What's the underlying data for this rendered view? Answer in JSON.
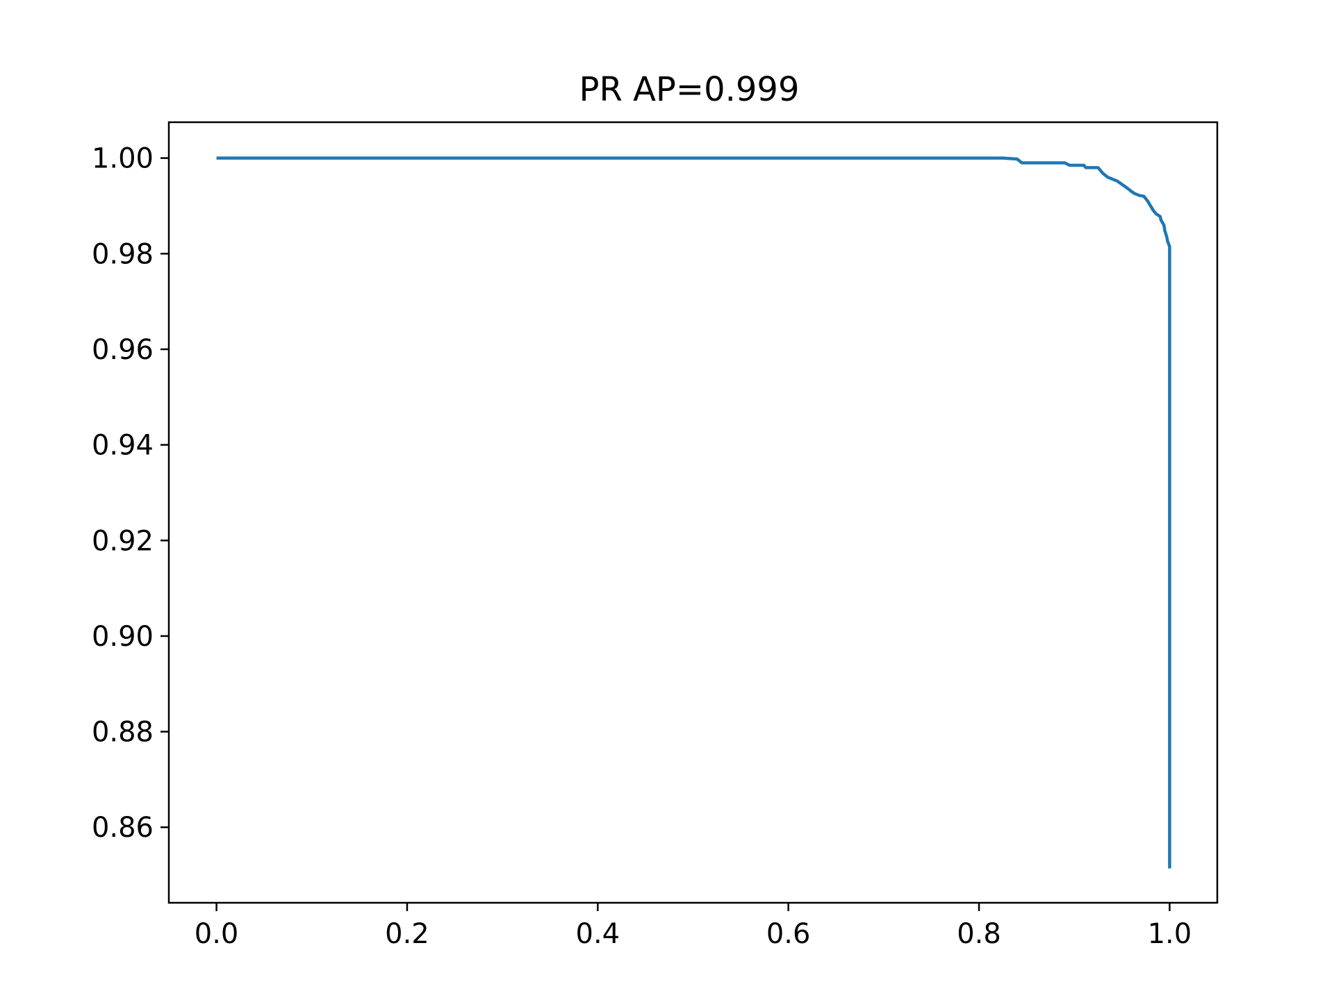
{
  "chart_data": {
    "type": "line",
    "title": "PR AP=0.999",
    "xlabel": "",
    "ylabel": "",
    "xlim": [
      -0.05,
      1.05
    ],
    "ylim": [
      0.8442,
      1.0075
    ],
    "xticks": [
      0.0,
      0.2,
      0.4,
      0.6,
      0.8,
      1.0
    ],
    "xtick_labels": [
      "0.0",
      "0.2",
      "0.4",
      "0.6",
      "0.8",
      "1.0"
    ],
    "yticks": [
      0.86,
      0.88,
      0.9,
      0.92,
      0.94,
      0.96,
      0.98,
      1.0
    ],
    "ytick_labels": [
      "0.86",
      "0.88",
      "0.90",
      "0.92",
      "0.94",
      "0.96",
      "0.98",
      "1.00"
    ],
    "grid": false,
    "series": [
      {
        "color": "#1f77b4",
        "x": [
          0.0,
          0.825,
          0.84,
          0.845,
          0.89,
          0.895,
          0.91,
          0.912,
          0.925,
          0.93,
          0.935,
          0.94,
          0.945,
          0.95,
          0.955,
          0.96,
          0.963,
          0.968,
          0.973,
          0.977,
          0.98,
          0.983,
          0.986,
          0.99,
          0.991,
          0.994,
          0.995,
          0.997,
          0.998,
          1.0,
          1.0
        ],
        "y": [
          1.0,
          1.0,
          0.9998,
          0.999,
          0.999,
          0.9985,
          0.9985,
          0.998,
          0.998,
          0.9968,
          0.996,
          0.9956,
          0.9952,
          0.9945,
          0.9938,
          0.993,
          0.9926,
          0.9922,
          0.992,
          0.991,
          0.99,
          0.989,
          0.9883,
          0.9878,
          0.987,
          0.986,
          0.9848,
          0.9835,
          0.9825,
          0.9815,
          0.8514
        ]
      }
    ]
  }
}
